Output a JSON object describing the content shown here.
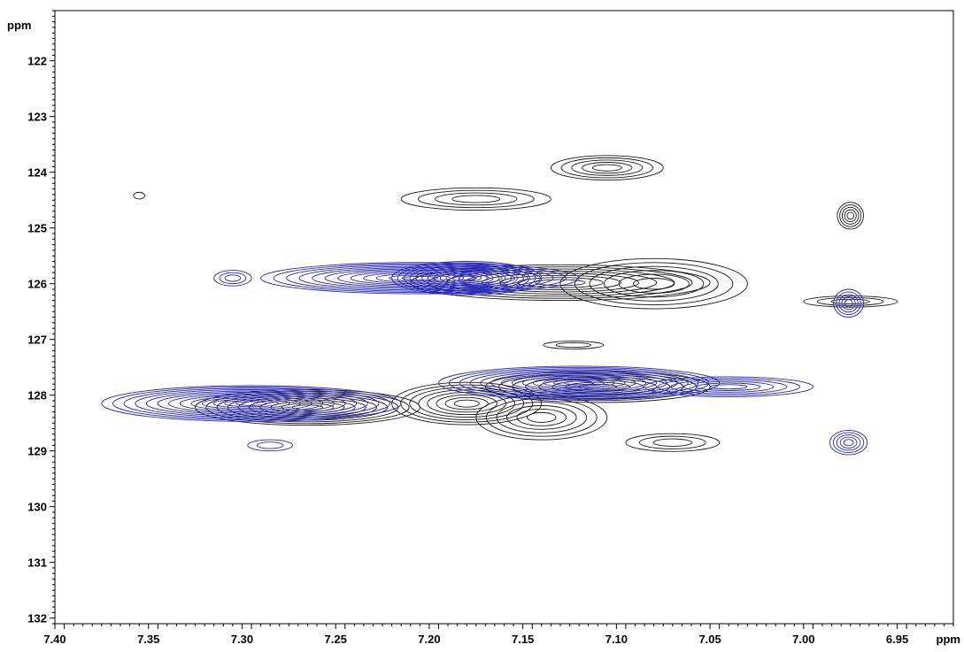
{
  "chart_data": {
    "type": "contour",
    "x_axis": {
      "unit_label": "ppm",
      "range": [
        7.4,
        6.92
      ],
      "ticks": [
        7.4,
        7.35,
        7.3,
        7.25,
        7.2,
        7.15,
        7.1,
        7.05,
        7.0,
        6.95
      ],
      "tick_labels": [
        "7.40",
        "7.35",
        "7.30",
        "7.25",
        "7.20",
        "7.15",
        "7.10",
        "7.05",
        "7.00",
        "6.95"
      ],
      "reversed": true
    },
    "y_axis": {
      "unit_label": "ppm",
      "range": [
        121.1,
        132.1
      ],
      "ticks": [
        122,
        123,
        124,
        125,
        126,
        127,
        128,
        129,
        130,
        131,
        132
      ],
      "tick_labels": [
        "122",
        "123",
        "124",
        "125",
        "126",
        "127",
        "128",
        "129",
        "130",
        "131",
        "132"
      ],
      "reversed": true
    },
    "grid": false,
    "colors": {
      "black_spectrum": "#1a1a1a",
      "blue_spectrum": "#2a2ab8",
      "frame": "#000000"
    },
    "series": [
      {
        "color": "black",
        "peaks": [
          {
            "x": 7.105,
            "y": 123.92,
            "rx": 0.03,
            "ry": 0.22,
            "levels": 5
          },
          {
            "x": 7.175,
            "y": 124.48,
            "rx": 0.04,
            "ry": 0.2,
            "levels": 4
          },
          {
            "x": 6.975,
            "y": 124.78,
            "rx": 0.007,
            "ry": 0.24,
            "levels": 5
          },
          {
            "x": 7.13,
            "y": 125.98,
            "rx": 0.08,
            "ry": 0.32,
            "levels": 8
          },
          {
            "x": 7.08,
            "y": 126.0,
            "rx": 0.05,
            "ry": 0.45,
            "levels": 6
          },
          {
            "x": 6.975,
            "y": 126.32,
            "rx": 0.025,
            "ry": 0.1,
            "levels": 3
          },
          {
            "x": 7.123,
            "y": 127.1,
            "rx": 0.016,
            "ry": 0.07,
            "levels": 2
          },
          {
            "x": 7.265,
            "y": 128.22,
            "rx": 0.06,
            "ry": 0.32,
            "levels": 10
          },
          {
            "x": 7.18,
            "y": 128.15,
            "rx": 0.04,
            "ry": 0.38,
            "levels": 8
          },
          {
            "x": 7.14,
            "y": 128.4,
            "rx": 0.035,
            "ry": 0.4,
            "levels": 6
          },
          {
            "x": 7.11,
            "y": 127.85,
            "rx": 0.06,
            "ry": 0.28,
            "levels": 8
          },
          {
            "x": 7.07,
            "y": 128.85,
            "rx": 0.025,
            "ry": 0.16,
            "levels": 3
          },
          {
            "x": 7.355,
            "y": 124.42,
            "rx": 0.003,
            "ry": 0.06,
            "levels": 1
          }
        ]
      },
      {
        "color": "blue",
        "peaks": [
          {
            "x": 7.305,
            "y": 125.9,
            "rx": 0.01,
            "ry": 0.14,
            "levels": 3
          },
          {
            "x": 7.205,
            "y": 125.9,
            "rx": 0.085,
            "ry": 0.28,
            "levels": 12
          },
          {
            "x": 7.18,
            "y": 125.9,
            "rx": 0.04,
            "ry": 0.3,
            "levels": 12
          },
          {
            "x": 7.295,
            "y": 128.15,
            "rx": 0.08,
            "ry": 0.32,
            "levels": 13
          },
          {
            "x": 7.12,
            "y": 127.78,
            "rx": 0.075,
            "ry": 0.3,
            "levels": 13
          },
          {
            "x": 7.04,
            "y": 127.85,
            "rx": 0.045,
            "ry": 0.18,
            "levels": 6
          },
          {
            "x": 7.285,
            "y": 128.9,
            "rx": 0.012,
            "ry": 0.1,
            "levels": 2
          },
          {
            "x": 6.976,
            "y": 126.35,
            "rx": 0.008,
            "ry": 0.25,
            "levels": 5
          },
          {
            "x": 6.976,
            "y": 128.85,
            "rx": 0.01,
            "ry": 0.22,
            "levels": 5
          }
        ]
      }
    ]
  }
}
